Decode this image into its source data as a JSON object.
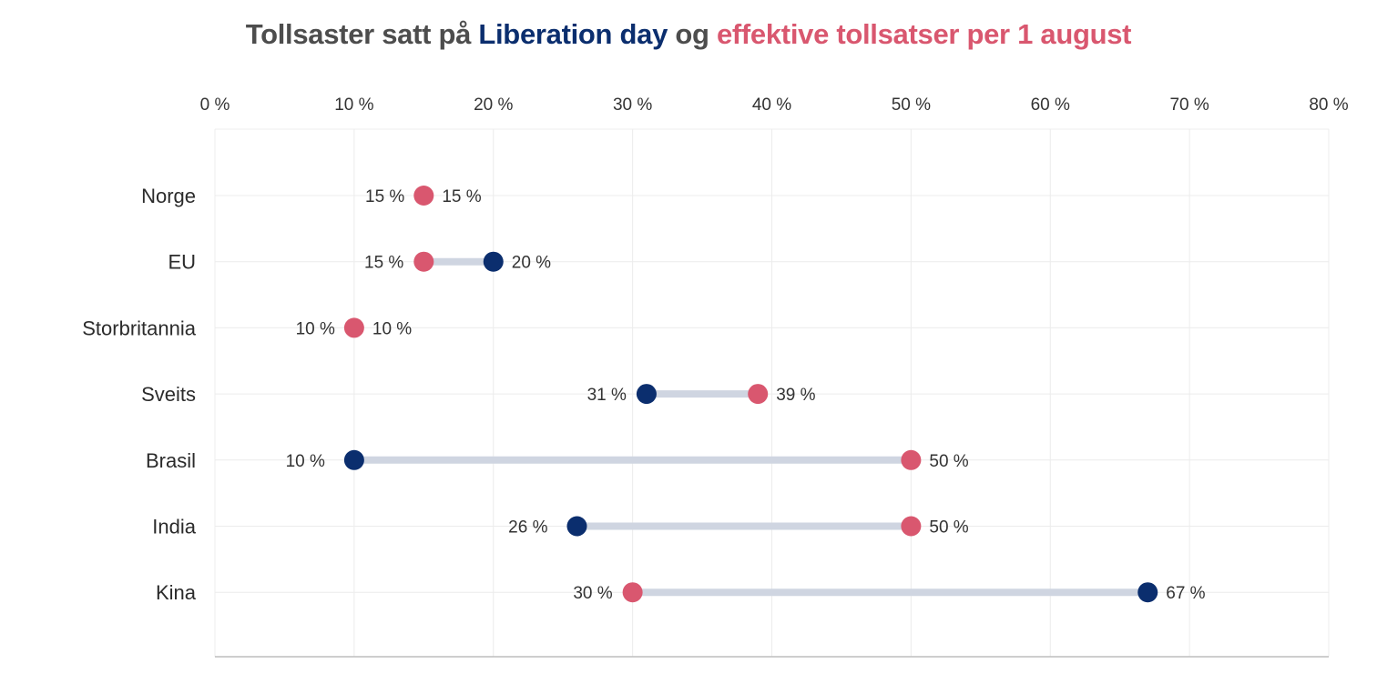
{
  "chart_data": {
    "type": "dumbbell",
    "title_parts": [
      {
        "text": "Tollsaster satt på ",
        "color": "#4d4d4d"
      },
      {
        "text": "Liberation day",
        "color": "#0b2e6e"
      },
      {
        "text": " og ",
        "color": "#4d4d4d"
      },
      {
        "text": "effektive tollsatser per 1 august",
        "color": "#d9576f"
      }
    ],
    "xlim": [
      0,
      80
    ],
    "x_ticks": [
      0,
      10,
      20,
      30,
      40,
      50,
      60,
      70,
      80
    ],
    "x_tick_labels": [
      "0 %",
      "10 %",
      "20 %",
      "30 %",
      "40 %",
      "50 %",
      "60 %",
      "70 %",
      "80 %"
    ],
    "categories": [
      "Norge",
      "EU",
      "Storbritannia",
      "Sveits",
      "Brasil",
      "India",
      "Kina"
    ],
    "series": [
      {
        "name": "Liberation day",
        "color": "#0b2e6e",
        "values": [
          15,
          20,
          10,
          31,
          10,
          26,
          67
        ],
        "labels": [
          "",
          "20 %",
          "",
          "31 %",
          "10 %",
          "26 %",
          "67 %"
        ]
      },
      {
        "name": "effektive tollsatser per 1 august",
        "color": "#d9576f",
        "values": [
          15,
          15,
          10,
          39,
          50,
          50,
          30
        ],
        "labels": [
          "15 %",
          "15 %",
          "10 %",
          "39 %",
          "50 %",
          "50 %",
          "30 %"
        ]
      }
    ],
    "norway_labels": [
      "15 %",
      "15 %"
    ],
    "uk_labels": [
      "10 %",
      "10 %"
    ],
    "connector_color": "#cfd5e1",
    "grid_color": "#ececec"
  }
}
